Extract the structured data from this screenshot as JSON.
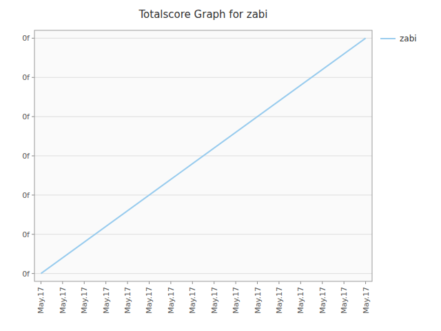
{
  "chart_data": {
    "type": "line",
    "title": "Totalscore Graph for zabi",
    "x": [
      0,
      1,
      2,
      3,
      4,
      5,
      6,
      7,
      8,
      9,
      10,
      11,
      12,
      13,
      14,
      15
    ],
    "series": [
      {
        "name": "zabi",
        "color": "#99CCEE",
        "values": [
          0,
          1,
          2,
          3,
          4,
          5,
          6,
          7,
          8,
          9,
          10,
          11,
          12,
          13,
          14,
          15
        ]
      }
    ],
    "xlim": [
      -0.3,
      15.3
    ],
    "xticks": [
      {
        "value": 0,
        "label": "May.17"
      },
      {
        "value": 1,
        "label": "May.17"
      },
      {
        "value": 2,
        "label": "May.17"
      },
      {
        "value": 3,
        "label": "May.17"
      },
      {
        "value": 4,
        "label": "May.17"
      },
      {
        "value": 5,
        "label": "May.17"
      },
      {
        "value": 6,
        "label": "May.17"
      },
      {
        "value": 7,
        "label": "May.17"
      },
      {
        "value": 8,
        "label": "May.17"
      },
      {
        "value": 9,
        "label": "May.17"
      },
      {
        "value": 10,
        "label": "May.17"
      },
      {
        "value": 11,
        "label": "May.17"
      },
      {
        "value": 12,
        "label": "May.17"
      },
      {
        "value": 13,
        "label": "May.17"
      },
      {
        "value": 14,
        "label": "May.17"
      },
      {
        "value": 15,
        "label": "May.17"
      }
    ],
    "ylim": [
      -0.5,
      15.5
    ],
    "yticks": [
      {
        "value": 0,
        "label": "0f"
      },
      {
        "value": 2.5,
        "label": "0f"
      },
      {
        "value": 5,
        "label": "0f"
      },
      {
        "value": 7.5,
        "label": "0f"
      },
      {
        "value": 10,
        "label": "0f"
      },
      {
        "value": 12.5,
        "label": "0f"
      },
      {
        "value": 15,
        "label": "0f"
      }
    ],
    "grid": "y",
    "legend": "upper right"
  }
}
